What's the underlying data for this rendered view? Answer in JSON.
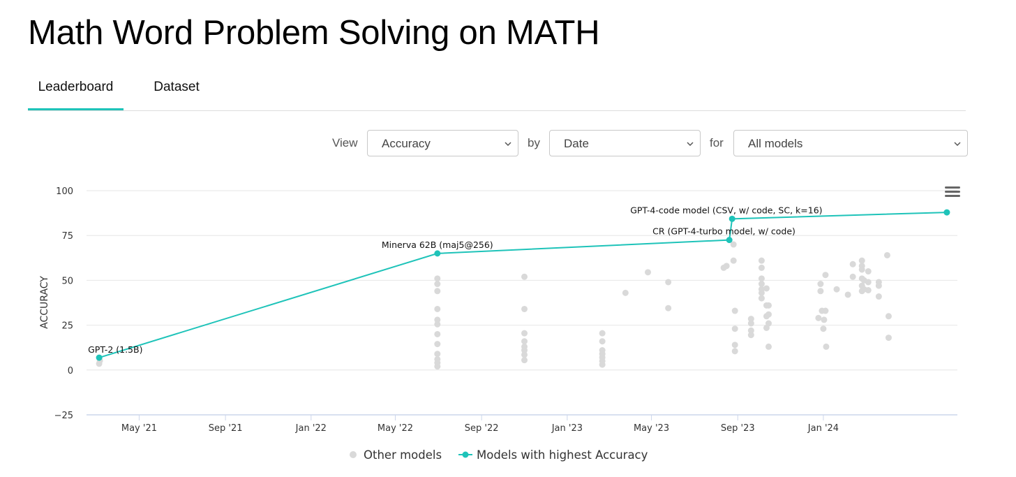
{
  "page": {
    "title": "Math Word Problem Solving on MATH"
  },
  "tabs": [
    {
      "label": "Leaderboard",
      "active": true
    },
    {
      "label": "Dataset",
      "active": false
    }
  ],
  "controls": {
    "view_label": "View",
    "view_value": "Accuracy",
    "by_label": "by",
    "by_value": "Date",
    "for_label": "for",
    "for_value": "All models"
  },
  "colors": {
    "accent": "#1ec3b9",
    "other_points": "#d9d9d9",
    "grid": "#e6e6e6"
  },
  "icons": {
    "menu": "hamburger-menu-icon",
    "dropdown": "chevron-down-icon"
  },
  "chart_data": {
    "type": "scatter",
    "ylabel": "ACCURACY",
    "xlabel": "",
    "ylim": [
      -25,
      100
    ],
    "yticks": [
      "100",
      "75",
      "50",
      "25",
      "0",
      "−25"
    ],
    "ytick_values": [
      100,
      75,
      50,
      25,
      0,
      -25
    ],
    "xlim": [
      "2021-02-15",
      "2024-07-10"
    ],
    "xticks": [
      {
        "label": "May '21",
        "date": "2021-05-01"
      },
      {
        "label": "Sep '21",
        "date": "2021-09-01"
      },
      {
        "label": "Jan '22",
        "date": "2022-01-01"
      },
      {
        "label": "May '22",
        "date": "2022-05-01"
      },
      {
        "label": "Sep '22",
        "date": "2022-09-01"
      },
      {
        "label": "Jan '23",
        "date": "2023-01-01"
      },
      {
        "label": "May '23",
        "date": "2023-05-01"
      },
      {
        "label": "Sep '23",
        "date": "2023-09-01"
      },
      {
        "label": "Jan '24",
        "date": "2024-01-01"
      }
    ],
    "legend": {
      "position": "bottom",
      "items": [
        "Other models",
        "Models with highest Accuracy"
      ]
    },
    "sota_series": {
      "name": "Models with highest Accuracy",
      "points": [
        {
          "date": "2021-03-05",
          "value": 6.9,
          "label": "GPT-2 (1.5B)"
        },
        {
          "date": "2022-06-30",
          "value": 65,
          "label": "Minerva 62B (maj5@256)"
        },
        {
          "date": "2023-08-20",
          "value": 72.5,
          "label": "CR (GPT-4-turbo model, w/ code)"
        },
        {
          "date": "2023-08-24",
          "value": 84.3,
          "label": "GPT-4-code model (CSV, w/ code, SC, k=16)"
        },
        {
          "date": "2024-06-25",
          "value": 87.9,
          "label": ""
        }
      ]
    },
    "other_series": {
      "name": "Other models",
      "points": [
        {
          "date": "2021-03-05",
          "value": 3.5
        },
        {
          "date": "2021-03-06",
          "value": 5.2
        },
        {
          "date": "2022-06-30",
          "value": 51
        },
        {
          "date": "2022-06-30",
          "value": 48
        },
        {
          "date": "2022-06-30",
          "value": 44
        },
        {
          "date": "2022-06-30",
          "value": 34
        },
        {
          "date": "2022-06-30",
          "value": 28
        },
        {
          "date": "2022-06-30",
          "value": 25.5
        },
        {
          "date": "2022-06-30",
          "value": 20
        },
        {
          "date": "2022-06-30",
          "value": 14.5
        },
        {
          "date": "2022-06-30",
          "value": 9
        },
        {
          "date": "2022-06-30",
          "value": 6
        },
        {
          "date": "2022-06-30",
          "value": 4
        },
        {
          "date": "2022-06-30",
          "value": 2
        },
        {
          "date": "2022-11-01",
          "value": 52
        },
        {
          "date": "2022-11-01",
          "value": 34
        },
        {
          "date": "2022-11-01",
          "value": 20.5
        },
        {
          "date": "2022-11-01",
          "value": 16
        },
        {
          "date": "2022-11-01",
          "value": 13
        },
        {
          "date": "2022-11-01",
          "value": 11
        },
        {
          "date": "2022-11-01",
          "value": 8.5
        },
        {
          "date": "2022-11-01",
          "value": 5.5
        },
        {
          "date": "2023-02-20",
          "value": 20.5
        },
        {
          "date": "2023-02-20",
          "value": 16
        },
        {
          "date": "2023-02-20",
          "value": 11
        },
        {
          "date": "2023-02-20",
          "value": 9
        },
        {
          "date": "2023-02-20",
          "value": 7
        },
        {
          "date": "2023-02-20",
          "value": 5
        },
        {
          "date": "2023-02-20",
          "value": 3
        },
        {
          "date": "2023-03-25",
          "value": 43
        },
        {
          "date": "2023-04-26",
          "value": 54.5
        },
        {
          "date": "2023-05-25",
          "value": 49
        },
        {
          "date": "2023-05-25",
          "value": 34.5
        },
        {
          "date": "2023-08-12",
          "value": 57
        },
        {
          "date": "2023-08-16",
          "value": 58
        },
        {
          "date": "2023-08-26",
          "value": 70
        },
        {
          "date": "2023-08-26",
          "value": 61
        },
        {
          "date": "2023-08-28",
          "value": 33
        },
        {
          "date": "2023-08-28",
          "value": 23
        },
        {
          "date": "2023-08-28",
          "value": 14
        },
        {
          "date": "2023-08-28",
          "value": 10.5
        },
        {
          "date": "2023-09-20",
          "value": 28.5
        },
        {
          "date": "2023-09-20",
          "value": 26
        },
        {
          "date": "2023-09-20",
          "value": 22
        },
        {
          "date": "2023-09-20",
          "value": 19.5
        },
        {
          "date": "2023-10-05",
          "value": 61
        },
        {
          "date": "2023-10-05",
          "value": 57
        },
        {
          "date": "2023-10-05",
          "value": 51
        },
        {
          "date": "2023-10-05",
          "value": 48
        },
        {
          "date": "2023-10-05",
          "value": 45
        },
        {
          "date": "2023-10-05",
          "value": 43
        },
        {
          "date": "2023-10-05",
          "value": 40
        },
        {
          "date": "2023-10-12",
          "value": 45.5
        },
        {
          "date": "2023-10-12",
          "value": 36
        },
        {
          "date": "2023-10-12",
          "value": 30
        },
        {
          "date": "2023-10-12",
          "value": 23.5
        },
        {
          "date": "2023-10-15",
          "value": 36
        },
        {
          "date": "2023-10-15",
          "value": 31
        },
        {
          "date": "2023-10-15",
          "value": 26
        },
        {
          "date": "2023-10-15",
          "value": 13
        },
        {
          "date": "2023-12-25",
          "value": 29
        },
        {
          "date": "2023-12-28",
          "value": 48
        },
        {
          "date": "2023-12-28",
          "value": 44
        },
        {
          "date": "2023-12-30",
          "value": 33
        },
        {
          "date": "2024-01-04",
          "value": 53
        },
        {
          "date": "2024-01-04",
          "value": 33
        },
        {
          "date": "2024-01-02",
          "value": 28
        },
        {
          "date": "2024-01-01",
          "value": 23
        },
        {
          "date": "2024-01-05",
          "value": 13
        },
        {
          "date": "2024-01-20",
          "value": 45
        },
        {
          "date": "2024-02-05",
          "value": 42
        },
        {
          "date": "2024-02-12",
          "value": 59
        },
        {
          "date": "2024-02-12",
          "value": 52
        },
        {
          "date": "2024-02-25",
          "value": 61
        },
        {
          "date": "2024-02-25",
          "value": 58
        },
        {
          "date": "2024-02-25",
          "value": 56
        },
        {
          "date": "2024-02-25",
          "value": 51
        },
        {
          "date": "2024-02-25",
          "value": 47
        },
        {
          "date": "2024-02-25",
          "value": 44
        },
        {
          "date": "2024-02-28",
          "value": 50
        },
        {
          "date": "2024-02-28",
          "value": 45
        },
        {
          "date": "2024-03-05",
          "value": 55
        },
        {
          "date": "2024-03-05",
          "value": 49
        },
        {
          "date": "2024-03-05",
          "value": 44.5
        },
        {
          "date": "2024-03-20",
          "value": 49
        },
        {
          "date": "2024-03-20",
          "value": 47
        },
        {
          "date": "2024-03-20",
          "value": 41
        },
        {
          "date": "2024-04-01",
          "value": 64
        },
        {
          "date": "2024-04-03",
          "value": 30
        },
        {
          "date": "2024-04-03",
          "value": 18
        }
      ]
    }
  }
}
